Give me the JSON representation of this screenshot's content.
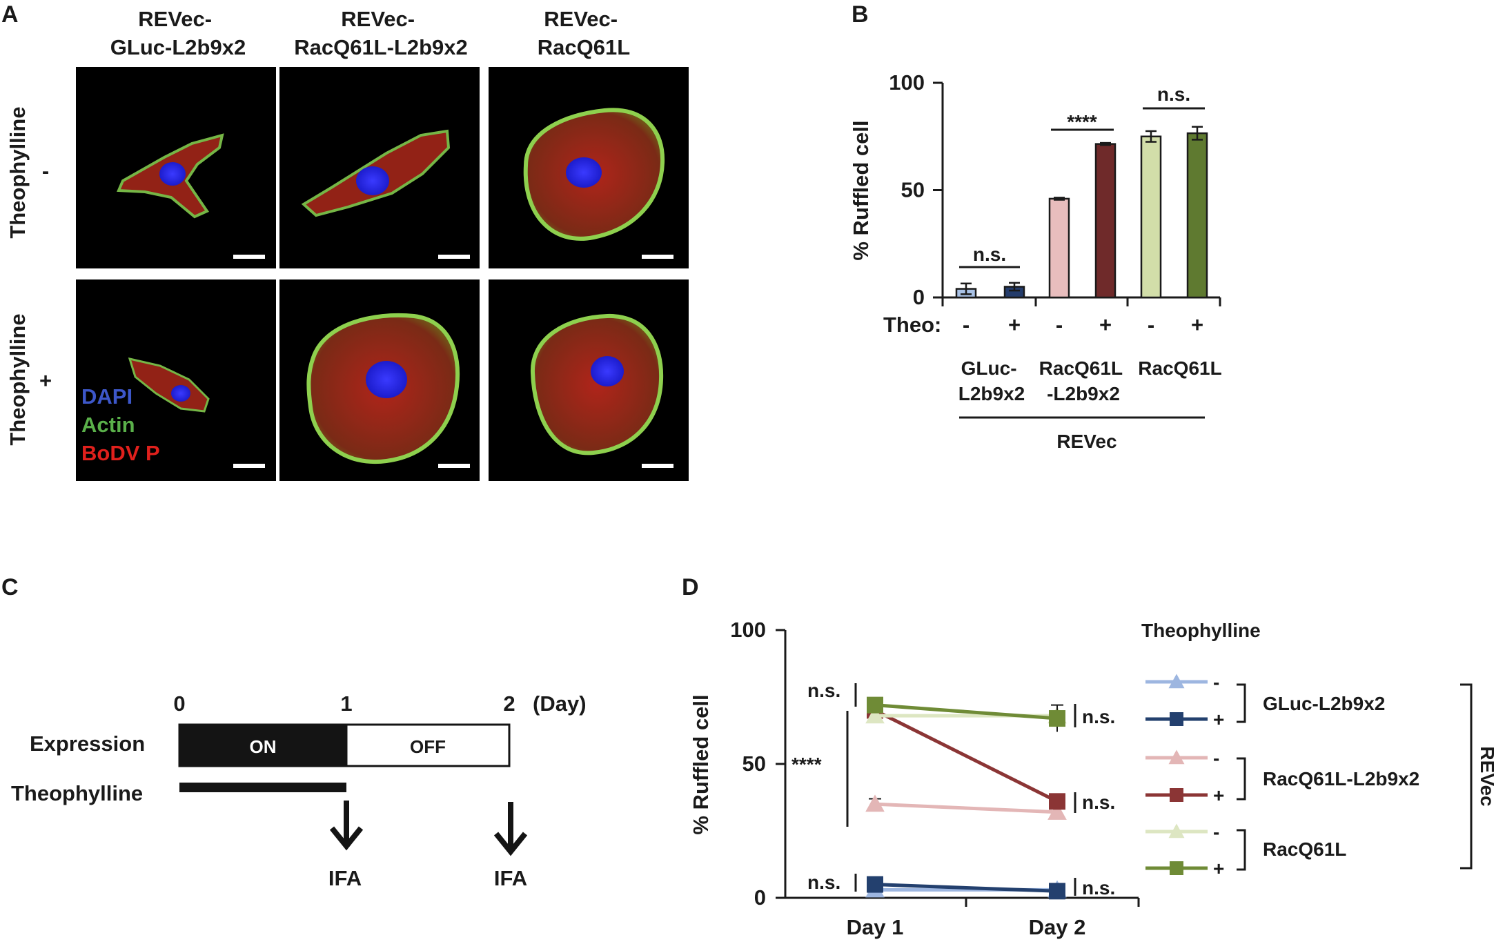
{
  "panels": {
    "A": {
      "letter": "A",
      "columns": [
        "REVec-\nGLuc-L2b9x2",
        "REVec-\nRacQ61L-L2b9x2",
        "REVec-\nRacQ61L"
      ],
      "rows": [
        {
          "label": "Theophylline",
          "sign": "-"
        },
        {
          "label": "Theophylline",
          "sign": "+"
        }
      ],
      "legend": [
        {
          "text": "DAPI",
          "color": "#3d57c9"
        },
        {
          "text": "Actin",
          "color": "#5ab04a"
        },
        {
          "text": "BoDV P",
          "color": "#e0201c"
        }
      ]
    },
    "B": {
      "letter": "B",
      "theo_label": "Theo:",
      "theo_signs": [
        "-",
        "+",
        "-",
        "+",
        "-",
        "+"
      ],
      "group_labels": [
        "GLuc-\nL2b9x2",
        "RacQ61L\n-L2b9x2",
        "RacQ61L"
      ],
      "bracket_label": "REVec",
      "significance": [
        "n.s.",
        "****",
        "n.s."
      ]
    },
    "C": {
      "letter": "C",
      "day_ticks": [
        "0",
        "1",
        "2"
      ],
      "day_unit": "(Day)",
      "row_labels": [
        "Expression",
        "Theophylline"
      ],
      "on_label": "ON",
      "off_label": "OFF",
      "ifa_labels": [
        "IFA",
        "IFA"
      ]
    },
    "D": {
      "letter": "D",
      "legend_title": "Theophylline",
      "legend_groups": [
        "GLuc-L2b9x2",
        "RacQ61L-L2b9x2",
        "RacQ61L"
      ],
      "legend_signs": [
        "-",
        "+",
        "-",
        "+",
        "-",
        "+"
      ],
      "bracket_label": "REVec",
      "significance_left": [
        "n.s.",
        "****",
        "n.s."
      ],
      "significance_right": [
        "n.s.",
        "n.s.",
        "n.s."
      ]
    }
  },
  "chart_data": [
    {
      "type": "bar",
      "panel": "B",
      "ylabel": "% Ruffled cell",
      "ylim": [
        0,
        100
      ],
      "yticks": [
        0,
        50,
        100
      ],
      "categories": [
        "GLuc-L2b9x2 -",
        "GLuc-L2b9x2 +",
        "RacQ61L-L2b9x2 -",
        "RacQ61L-L2b9x2 +",
        "RacQ61L -",
        "RacQ61L +"
      ],
      "values": [
        4,
        5,
        46,
        71.5,
        75,
        76.5
      ],
      "errors": [
        2.5,
        1.8,
        0.5,
        0.5,
        2.5,
        3
      ],
      "colors": [
        "#a9c2e6",
        "#243c6b",
        "#e8bdbd",
        "#6f2a2a",
        "#d2dea9",
        "#5f7a30"
      ]
    },
    {
      "type": "line",
      "panel": "D",
      "ylabel": "% Ruffled cell",
      "ylim": [
        0,
        100
      ],
      "yticks": [
        0,
        50,
        100
      ],
      "categories": [
        "Day 1",
        "Day 2"
      ],
      "series": [
        {
          "name": "GLuc-L2b9x2 -",
          "values": [
            3,
            3
          ],
          "errors": [
            0.5,
            0.8
          ],
          "color": "#9db6e0",
          "marker": "triangle"
        },
        {
          "name": "GLuc-L2b9x2 +",
          "values": [
            5,
            2.5
          ],
          "errors": [
            0.5,
            0.5
          ],
          "color": "#23406e",
          "marker": "square"
        },
        {
          "name": "RacQ61L-L2b9x2 -",
          "values": [
            35,
            32
          ],
          "errors": [
            2,
            1.5
          ],
          "color": "#e3b6b6",
          "marker": "triangle"
        },
        {
          "name": "RacQ61L-L2b9x2 +",
          "values": [
            70,
            36
          ],
          "errors": [
            1.5,
            1.5
          ],
          "color": "#8b3535",
          "marker": "square"
        },
        {
          "name": "RacQ61L -",
          "values": [
            68,
            68
          ],
          "errors": [
            1.5,
            1.5
          ],
          "color": "#dde6c2",
          "marker": "triangle"
        },
        {
          "name": "RacQ61L +",
          "values": [
            72,
            67
          ],
          "errors": [
            1.5,
            5
          ],
          "color": "#6f8b36",
          "marker": "square"
        }
      ]
    }
  ]
}
